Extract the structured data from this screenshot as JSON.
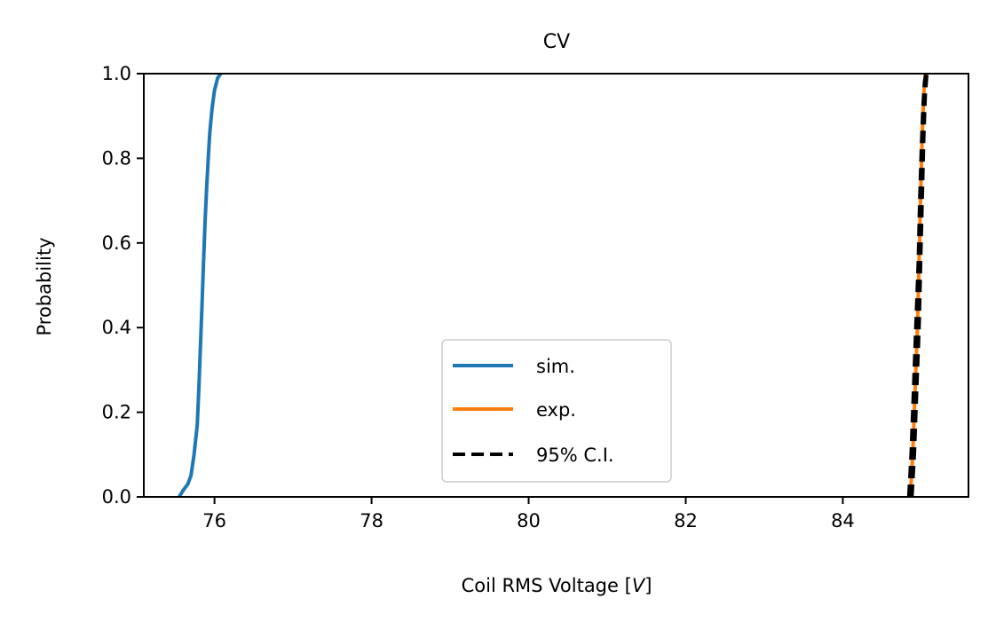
{
  "chart_data": {
    "type": "line",
    "title": "CV",
    "xlabel": "Coil RMS Voltage [V]",
    "xlabel_parts": {
      "prefix": "Coil RMS Voltage [",
      "var": "V",
      "suffix": "]"
    },
    "ylabel": "Probability",
    "xlim": [
      75.1,
      85.6
    ],
    "ylim": [
      0.0,
      1.0
    ],
    "xticks": [
      76,
      78,
      80,
      82,
      84
    ],
    "xtick_labels": [
      "76",
      "78",
      "80",
      "82",
      "84"
    ],
    "yticks": [
      0.0,
      0.2,
      0.4,
      0.6,
      0.8,
      1.0
    ],
    "ytick_labels": [
      "0.0",
      "0.2",
      "0.4",
      "0.6",
      "0.8",
      "1.0"
    ],
    "grid": false,
    "legend": {
      "placement": "lower center",
      "entries": [
        "sim.",
        "exp.",
        "95% C.I."
      ]
    },
    "series": [
      {
        "name": "sim.",
        "color": "#1f77b4",
        "style": "solid",
        "x": [
          75.55,
          75.6,
          75.66,
          75.7,
          75.74,
          75.78,
          75.8,
          75.82,
          75.84,
          75.86,
          75.88,
          75.9,
          75.92,
          75.94,
          75.97,
          76.0,
          76.04,
          76.08
        ],
        "y": [
          0.0,
          0.015,
          0.03,
          0.05,
          0.1,
          0.17,
          0.25,
          0.35,
          0.45,
          0.55,
          0.65,
          0.73,
          0.8,
          0.86,
          0.92,
          0.96,
          0.99,
          1.0
        ]
      },
      {
        "name": "exp.",
        "color": "#ff7f0e",
        "style": "solid",
        "x": [
          84.86,
          84.89,
          84.92,
          84.95,
          84.97,
          84.99,
          85.01,
          85.03,
          85.05
        ],
        "y": [
          0.0,
          0.1,
          0.25,
          0.4,
          0.55,
          0.7,
          0.85,
          0.95,
          1.0
        ]
      },
      {
        "name": "95% C.I.",
        "color": "#000000",
        "style": "dashed",
        "x": [
          84.84,
          84.87,
          84.9,
          84.93,
          84.96,
          84.98,
          85.0,
          85.02,
          85.04,
          85.06
        ],
        "y": [
          0.0,
          0.1,
          0.25,
          0.4,
          0.55,
          0.7,
          0.82,
          0.92,
          0.98,
          1.0
        ]
      },
      {
        "name": "",
        "color": "#000000",
        "style": "dashed",
        "x": [
          84.88,
          84.91,
          84.94,
          84.97,
          84.99,
          85.01,
          85.03,
          85.05,
          85.07
        ],
        "y": [
          0.0,
          0.1,
          0.25,
          0.4,
          0.55,
          0.7,
          0.85,
          0.95,
          1.0
        ]
      }
    ]
  }
}
